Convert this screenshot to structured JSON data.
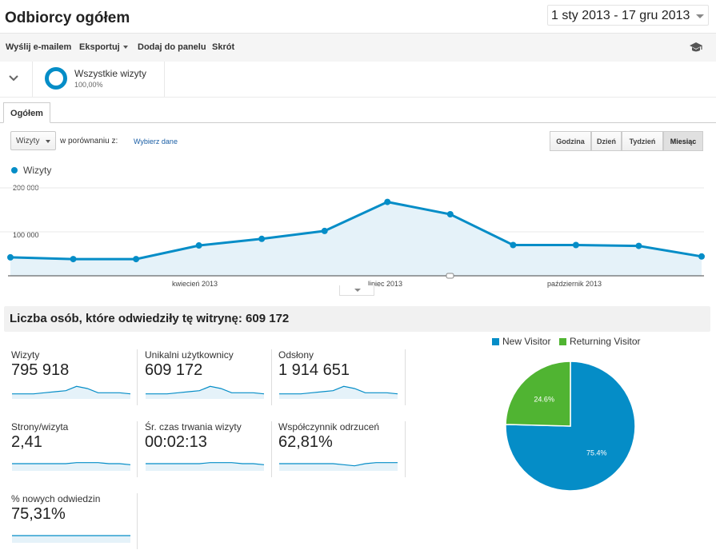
{
  "header": {
    "title": "Odbiorcy ogółem",
    "date_range": "1 sty 2013 - 17 gru 2013"
  },
  "toolbar": {
    "email_label": "Wyślij e-mailem",
    "export_label": "Eksportuj",
    "add_dashboard_label": "Dodaj do panelu",
    "shortcut_label": "Skrót",
    "icon": "graduation-cap-icon"
  },
  "segment": {
    "name": "Wszystkie wizyty",
    "percent": "100,00%"
  },
  "tabs": [
    {
      "label": "Ogółem"
    }
  ],
  "controls": {
    "metric": "Wizyty",
    "compare_label": "w porównaniu z:",
    "choose_data": "Wybierz dane",
    "granularity": [
      "Godzina",
      "Dzień",
      "Tydzień",
      "Miesiąc"
    ],
    "active_granularity": "Miesiąc"
  },
  "chart_data": {
    "type": "area",
    "title": "",
    "series": [
      {
        "name": "Wizyty",
        "values": [
          42000,
          38000,
          38000,
          69000,
          84000,
          102000,
          168000,
          140000,
          70000,
          70000,
          68000,
          44000
        ]
      }
    ],
    "x": [
      "2013-01",
      "2013-02",
      "2013-03",
      "2013-04",
      "2013-05",
      "2013-06",
      "2013-07",
      "2013-08",
      "2013-09",
      "2013-10",
      "2013-11",
      "2013-12"
    ],
    "x_tick_labels": [
      "kwiecień 2013",
      "lipiec 2013",
      "październik 2013"
    ],
    "y_tick_labels": [
      "200 000",
      "100 000"
    ],
    "ylim": [
      0,
      200000
    ],
    "color": "#058dc7",
    "fill": "#e5f2f9",
    "grid": true
  },
  "summary": {
    "title": "Liczba osób, które odwiedziły tę witrynę: 609 172"
  },
  "metrics": [
    {
      "label": "Wizyty",
      "value": "795 918",
      "spark": [
        4,
        4,
        4,
        5,
        6,
        7,
        11,
        9,
        5,
        5,
        5,
        4
      ]
    },
    {
      "label": "Unikalni użytkownicy",
      "value": "609 172",
      "spark": [
        4,
        4,
        4,
        5,
        6,
        7,
        11,
        9,
        5,
        5,
        5,
        4
      ]
    },
    {
      "label": "Odsłony",
      "value": "1 914 651",
      "spark": [
        4,
        4,
        4,
        5,
        6,
        7,
        11,
        9,
        5,
        5,
        5,
        4
      ]
    },
    {
      "label": "Strony/wizyta",
      "value": "2,41",
      "spark": [
        6,
        6,
        6,
        6,
        6,
        6,
        7,
        7,
        7,
        6,
        6,
        5
      ]
    },
    {
      "label": "Śr. czas trwania wizyty",
      "value": "00:02:13",
      "spark": [
        6,
        6,
        6,
        6,
        6,
        6,
        7,
        7,
        7,
        6,
        6,
        5
      ]
    },
    {
      "label": "Współczynnik odrzuceń",
      "value": "62,81%",
      "spark": [
        6,
        6,
        6,
        6,
        6,
        6,
        5,
        4,
        6,
        7,
        7,
        7
      ]
    },
    {
      "label": "% nowych odwiedzin",
      "value": "75,31%",
      "spark": [
        6,
        6,
        6,
        6,
        6,
        6,
        6,
        6,
        6,
        6,
        6,
        6
      ]
    }
  ],
  "pie": {
    "type": "pie",
    "slices": [
      {
        "label": "New Visitor",
        "value": 75.4,
        "text": "75.4%",
        "color": "#058dc7"
      },
      {
        "label": "Returning Visitor",
        "value": 24.6,
        "text": "24.6%",
        "color": "#50b432"
      }
    ]
  }
}
